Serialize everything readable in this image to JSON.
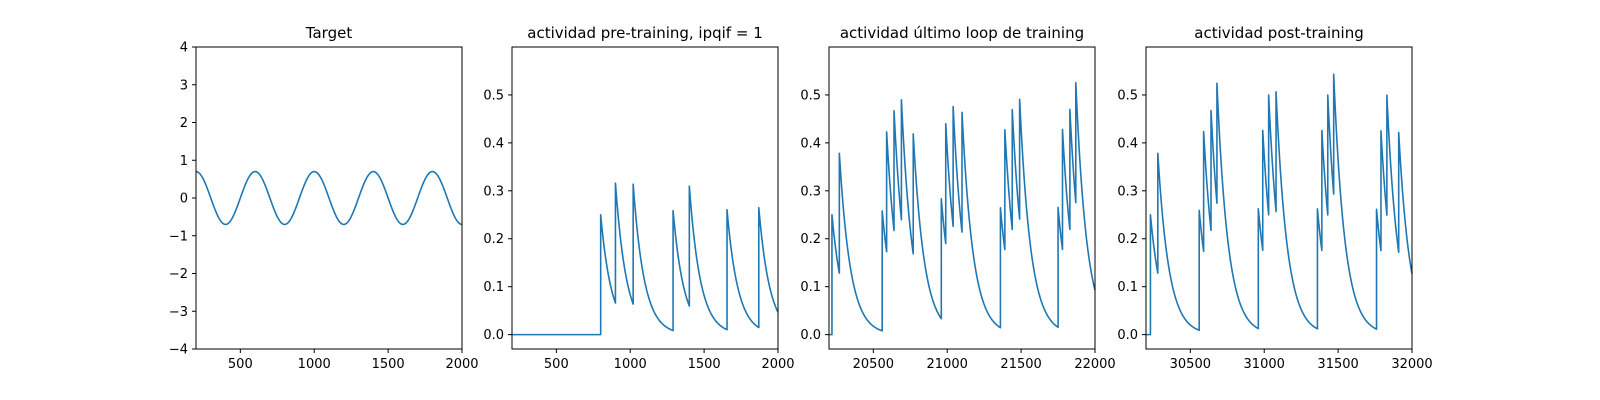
{
  "chart_data": [
    {
      "type": "line",
      "title": "Target",
      "xlabel": "",
      "ylabel": "",
      "xlim": [
        200,
        2000
      ],
      "ylim": [
        -4,
        4
      ],
      "xticks": [
        500,
        1000,
        1500,
        2000
      ],
      "yticks": [
        -4,
        -3,
        -2,
        -1,
        0,
        1,
        2,
        3,
        4
      ],
      "grid": false,
      "color": "#1f77b4",
      "series": [
        {
          "kind": "sine",
          "amplitude": 0.7,
          "period": 400,
          "peak_at": 200,
          "x": [
            200,
            400,
            600,
            800,
            1000,
            1200,
            1400,
            1600,
            1800,
            2000
          ],
          "values": [
            0.7,
            -0.7,
            0.7,
            -0.7,
            0.7,
            -0.7,
            0.7,
            -0.7,
            0.7,
            -0.7
          ]
        }
      ]
    },
    {
      "type": "line",
      "title": "actividad pre-training, ipqif = 1",
      "xlabel": "",
      "ylabel": "",
      "xlim": [
        200,
        2000
      ],
      "ylim": [
        -0.03,
        0.6
      ],
      "xticks": [
        500,
        1000,
        1500,
        2000
      ],
      "yticks": [
        0.0,
        0.1,
        0.2,
        0.3,
        0.4,
        0.5
      ],
      "grid": false,
      "color": "#1f77b4",
      "series": [
        {
          "kind": "spike-decay",
          "tau": 75,
          "baseline": 0.0,
          "spikes": [
            {
              "x": 800,
              "jump": 0.25
            },
            {
              "x": 900,
              "jump": 0.25
            },
            {
              "x": 1020,
              "jump": 0.25
            },
            {
              "x": 1290,
              "jump": 0.25
            },
            {
              "x": 1400,
              "jump": 0.25
            },
            {
              "x": 1655,
              "jump": 0.25
            },
            {
              "x": 1870,
              "jump": 0.25
            }
          ]
        }
      ]
    },
    {
      "type": "line",
      "title": "actividad último loop de training",
      "xlabel": "",
      "ylabel": "",
      "xlim": [
        20200,
        22000
      ],
      "ylim": [
        -0.03,
        0.6
      ],
      "xticks": [
        20500,
        21000,
        21500,
        22000
      ],
      "yticks": [
        0.0,
        0.1,
        0.2,
        0.3,
        0.4,
        0.5
      ],
      "grid": false,
      "color": "#1f77b4",
      "series": [
        {
          "kind": "spike-decay",
          "tau": 75,
          "baseline": 0.0,
          "spikes": [
            {
              "x": 20200,
              "jump": 0.0
            },
            {
              "x": 20220,
              "jump": 0.25
            },
            {
              "x": 20270,
              "jump": 0.25
            },
            {
              "x": 20560,
              "jump": 0.25
            },
            {
              "x": 20590,
              "jump": 0.25
            },
            {
              "x": 20640,
              "jump": 0.25
            },
            {
              "x": 20690,
              "jump": 0.25
            },
            {
              "x": 20770,
              "jump": 0.25
            },
            {
              "x": 20960,
              "jump": 0.25
            },
            {
              "x": 20990,
              "jump": 0.25
            },
            {
              "x": 21040,
              "jump": 0.25
            },
            {
              "x": 21100,
              "jump": 0.25
            },
            {
              "x": 21360,
              "jump": 0.25
            },
            {
              "x": 21390,
              "jump": 0.25
            },
            {
              "x": 21440,
              "jump": 0.25
            },
            {
              "x": 21490,
              "jump": 0.25
            },
            {
              "x": 21750,
              "jump": 0.25
            },
            {
              "x": 21780,
              "jump": 0.25
            },
            {
              "x": 21830,
              "jump": 0.25
            },
            {
              "x": 21870,
              "jump": 0.25
            }
          ]
        }
      ]
    },
    {
      "type": "line",
      "title": "actividad post-training",
      "xlabel": "",
      "ylabel": "",
      "xlim": [
        30200,
        32000
      ],
      "ylim": [
        -0.03,
        0.6
      ],
      "xticks": [
        30500,
        31000,
        31500,
        32000
      ],
      "yticks": [
        0.0,
        0.1,
        0.2,
        0.3,
        0.4,
        0.5
      ],
      "grid": false,
      "color": "#1f77b4",
      "series": [
        {
          "kind": "spike-decay",
          "tau": 75,
          "baseline": 0.0,
          "spikes": [
            {
              "x": 30230,
              "jump": 0.25
            },
            {
              "x": 30280,
              "jump": 0.25
            },
            {
              "x": 30560,
              "jump": 0.25
            },
            {
              "x": 30590,
              "jump": 0.25
            },
            {
              "x": 30640,
              "jump": 0.25
            },
            {
              "x": 30680,
              "jump": 0.25
            },
            {
              "x": 30960,
              "jump": 0.25
            },
            {
              "x": 30990,
              "jump": 0.25
            },
            {
              "x": 31030,
              "jump": 0.25
            },
            {
              "x": 31080,
              "jump": 0.25
            },
            {
              "x": 31360,
              "jump": 0.25
            },
            {
              "x": 31390,
              "jump": 0.25
            },
            {
              "x": 31430,
              "jump": 0.25
            },
            {
              "x": 31470,
              "jump": 0.25
            },
            {
              "x": 31760,
              "jump": 0.25
            },
            {
              "x": 31790,
              "jump": 0.25
            },
            {
              "x": 31830,
              "jump": 0.25
            },
            {
              "x": 31910,
              "jump": 0.25
            }
          ]
        }
      ]
    }
  ]
}
